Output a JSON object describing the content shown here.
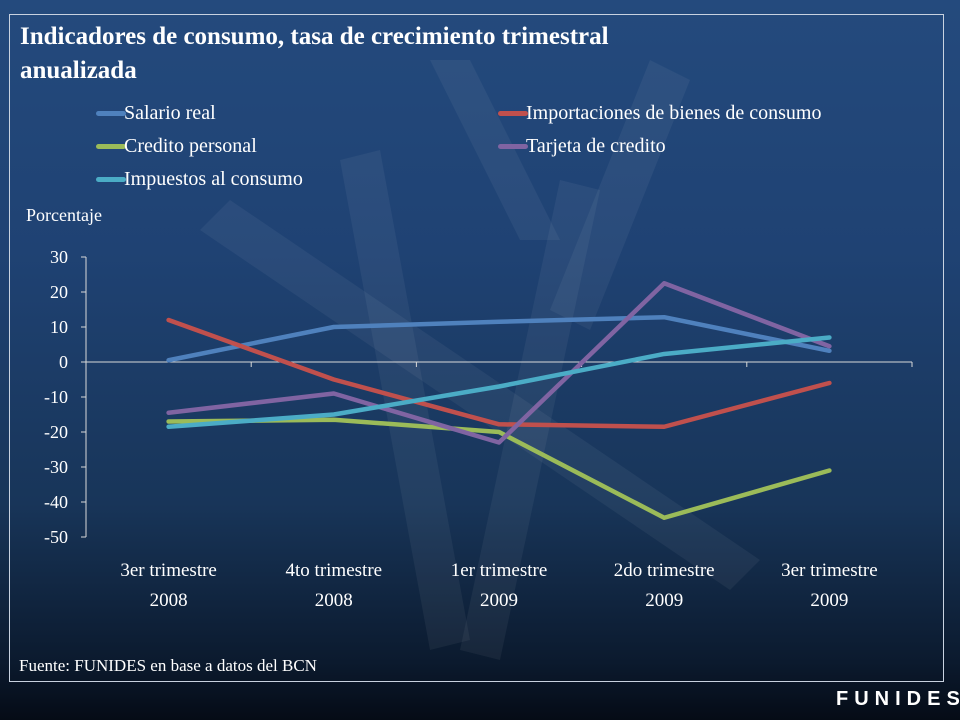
{
  "title": "Indicadores de consumo, tasa de crecimiento trimestral anualizada",
  "ylabel": "Porcentaje",
  "source": "Fuente: FUNIDES en base a datos del BCN",
  "brand": "FUNIDES",
  "chart_data": {
    "type": "line",
    "title": "Indicadores de consumo, tasa de crecimiento trimestral anualizada",
    "ylabel": "Porcentaje",
    "xlabel": "",
    "categories": [
      [
        "3er trimestre",
        "2008"
      ],
      [
        "4to trimestre",
        "2008"
      ],
      [
        "1er trimestre",
        "2009"
      ],
      [
        "2do trimestre",
        "2009"
      ],
      [
        "3er trimestre",
        "2009"
      ]
    ],
    "ylim": [
      -50,
      30
    ],
    "yticks": [
      "30",
      "20",
      "10",
      "0",
      "-10",
      "-20",
      "-30",
      "-40",
      "-50"
    ],
    "ytick_values": [
      30,
      20,
      10,
      0,
      -10,
      -20,
      -30,
      -40,
      -50
    ],
    "grid": false,
    "legend_position": "top",
    "series": [
      {
        "name": "Salario real",
        "color": "#4f81bd",
        "values": [
          0.5,
          10,
          11.5,
          12.8,
          3.2
        ]
      },
      {
        "name": "Importaciones de bienes de consumo",
        "color": "#c0504d",
        "values": [
          12,
          -5,
          -17.8,
          -18.5,
          -6
        ]
      },
      {
        "name": "Credito personal",
        "color": "#9bbb59",
        "values": [
          -17,
          -16.5,
          -20,
          -44.5,
          -31
        ]
      },
      {
        "name": "Tarjeta de credito",
        "color": "#8064a2",
        "values": [
          -14.5,
          -9,
          -23,
          22.5,
          4.5
        ]
      },
      {
        "name": "Impuestos al consumo",
        "color": "#4bacc6",
        "values": [
          -18.5,
          -15,
          -7,
          2.3,
          7
        ]
      }
    ]
  }
}
